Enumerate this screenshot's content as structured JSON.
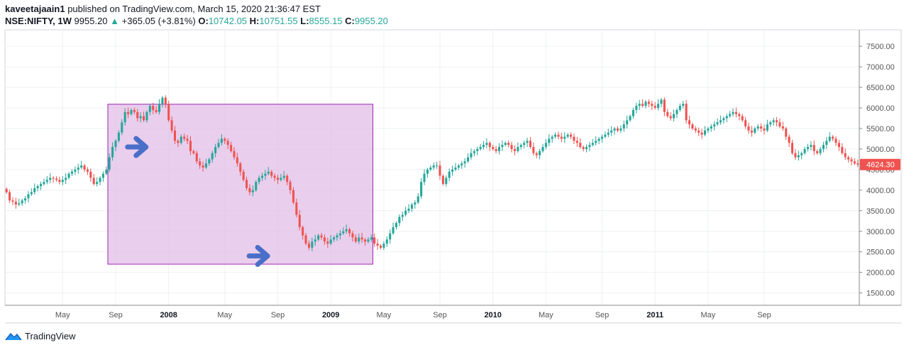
{
  "header": {
    "author": "kaveetajaain1",
    "published_text": "published on TradingView.com, March 15, 2020 21:36:47 EST",
    "symbol": "NSE:NIFTY, 1W",
    "last": "9955.20",
    "change_arrow": "▲",
    "change": "+365.05 (+3.81%)",
    "o_label": "O:",
    "o_value": "10742.05",
    "h_label": "H:",
    "h_value": "10751.55",
    "l_label": "L:",
    "l_value": "8555.15",
    "c_label": "C:",
    "c_value": "9955.20"
  },
  "footer": {
    "brand": "TradingView",
    "logo_icon": "tradingview-logo-icon"
  },
  "colors": {
    "up": "#26a69a",
    "down": "#ef5350",
    "highlight": "#e1bee7",
    "highlight_border": "#9c27b0",
    "arrow": "#4a6fc8",
    "price_label": "#ef5350"
  },
  "chart_data": {
    "type": "candlestick",
    "y_ticks": [
      "7500.00",
      "7000.00",
      "6500.00",
      "6000.00",
      "5500.00",
      "5000.00",
      "4500.00",
      "4000.00",
      "3500.00",
      "3000.00",
      "2500.00",
      "2000.00",
      "1500.00"
    ],
    "ylim": [
      1200,
      7900
    ],
    "x_ticks": [
      {
        "label": "May",
        "week": 18,
        "bold": false
      },
      {
        "label": "Sep",
        "week": 35,
        "bold": false
      },
      {
        "label": "2008",
        "week": 52,
        "bold": true
      },
      {
        "label": "May",
        "week": 70,
        "bold": false
      },
      {
        "label": "Sep",
        "week": 87,
        "bold": false
      },
      {
        "label": "2009",
        "week": 104,
        "bold": true
      },
      {
        "label": "May",
        "week": 121,
        "bold": false
      },
      {
        "label": "Sep",
        "week": 139,
        "bold": false
      },
      {
        "label": "2010",
        "week": 156,
        "bold": true
      },
      {
        "label": "May",
        "week": 173,
        "bold": false
      },
      {
        "label": "Sep",
        "week": 191,
        "bold": false
      },
      {
        "label": "2011",
        "week": 208,
        "bold": true
      },
      {
        "label": "May",
        "week": 225,
        "bold": false
      },
      {
        "label": "Sep",
        "week": 243,
        "bold": false
      }
    ],
    "grid": true,
    "current_price": "4624.30",
    "highlight_box": {
      "week_start": 33,
      "week_end": 118,
      "price_low": 2200,
      "price_high": 6090
    },
    "arrows": [
      {
        "week": 42,
        "price": 5050
      },
      {
        "week": 81,
        "price": 2400
      }
    ],
    "closes": [
      3950,
      3750,
      3720,
      3650,
      3680,
      3750,
      3800,
      3900,
      3950,
      4050,
      4100,
      4150,
      4200,
      4250,
      4300,
      4280,
      4250,
      4200,
      4250,
      4300,
      4400,
      4450,
      4500,
      4550,
      4600,
      4500,
      4450,
      4300,
      4150,
      4200,
      4300,
      4400,
      4500,
      4800,
      5050,
      5200,
      5400,
      5650,
      5900,
      5850,
      5950,
      5900,
      5750,
      5800,
      5700,
      5900,
      6050,
      5950,
      5900,
      6100,
      6250,
      6100,
      5700,
      5450,
      5200,
      5150,
      5300,
      5250,
      5200,
      4950,
      4900,
      4700,
      4600,
      4550,
      4650,
      4750,
      4900,
      5050,
      5150,
      5250,
      5200,
      5100,
      4950,
      4800,
      4650,
      4450,
      4250,
      4050,
      3950,
      4000,
      4200,
      4300,
      4350,
      4400,
      4450,
      4350,
      4300,
      4250,
      4300,
      4350,
      4200,
      4000,
      3700,
      3400,
      3100,
      2900,
      2700,
      2600,
      2750,
      2800,
      2900,
      2850,
      2750,
      2700,
      2800,
      2850,
      2900,
      2950,
      3000,
      3050,
      2950,
      2850,
      2750,
      2850,
      2800,
      2750,
      2800,
      2850,
      2700,
      2650,
      2600,
      2700,
      2800,
      2950,
      3100,
      3200,
      3350,
      3400,
      3500,
      3550,
      3650,
      3700,
      3850,
      4200,
      4400,
      4500,
      4550,
      4600,
      4600,
      4350,
      4150,
      4300,
      4450,
      4500,
      4550,
      4600,
      4650,
      4700,
      4800,
      4900,
      4950,
      5000,
      5050,
      5100,
      5150,
      5050,
      5000,
      4950,
      5050,
      5100,
      5150,
      5100,
      5000,
      4950,
      5050,
      5100,
      5150,
      5200,
      5050,
      4900,
      4850,
      4950,
      5050,
      5150,
      5250,
      5300,
      5350,
      5300,
      5250,
      5300,
      5350,
      5300,
      5200,
      5150,
      5050,
      5000,
      5050,
      5100,
      5150,
      5200,
      5250,
      5300,
      5350,
      5400,
      5450,
      5500,
      5450,
      5500,
      5600,
      5700,
      5800,
      5950,
      6050,
      6100,
      6050,
      6150,
      6100,
      6050,
      6000,
      6100,
      6200,
      5900,
      5800,
      5750,
      5850,
      5950,
      6050,
      6100,
      5700,
      5600,
      5500,
      5450,
      5400,
      5350,
      5450,
      5500,
      5550,
      5600,
      5650,
      5700,
      5750,
      5800,
      5850,
      5900,
      5850,
      5800,
      5700,
      5550,
      5450,
      5400,
      5500,
      5550,
      5500,
      5450,
      5600,
      5650,
      5700,
      5650,
      5550,
      5500,
      5300,
      5150,
      4900,
      4800,
      4850,
      4900,
      5000,
      5050,
      5100,
      4950,
      4900,
      5000,
      5100,
      5200,
      5300,
      5250,
      5150,
      5050,
      4900,
      4800,
      4750,
      4700,
      4650,
      4624.3
    ]
  }
}
